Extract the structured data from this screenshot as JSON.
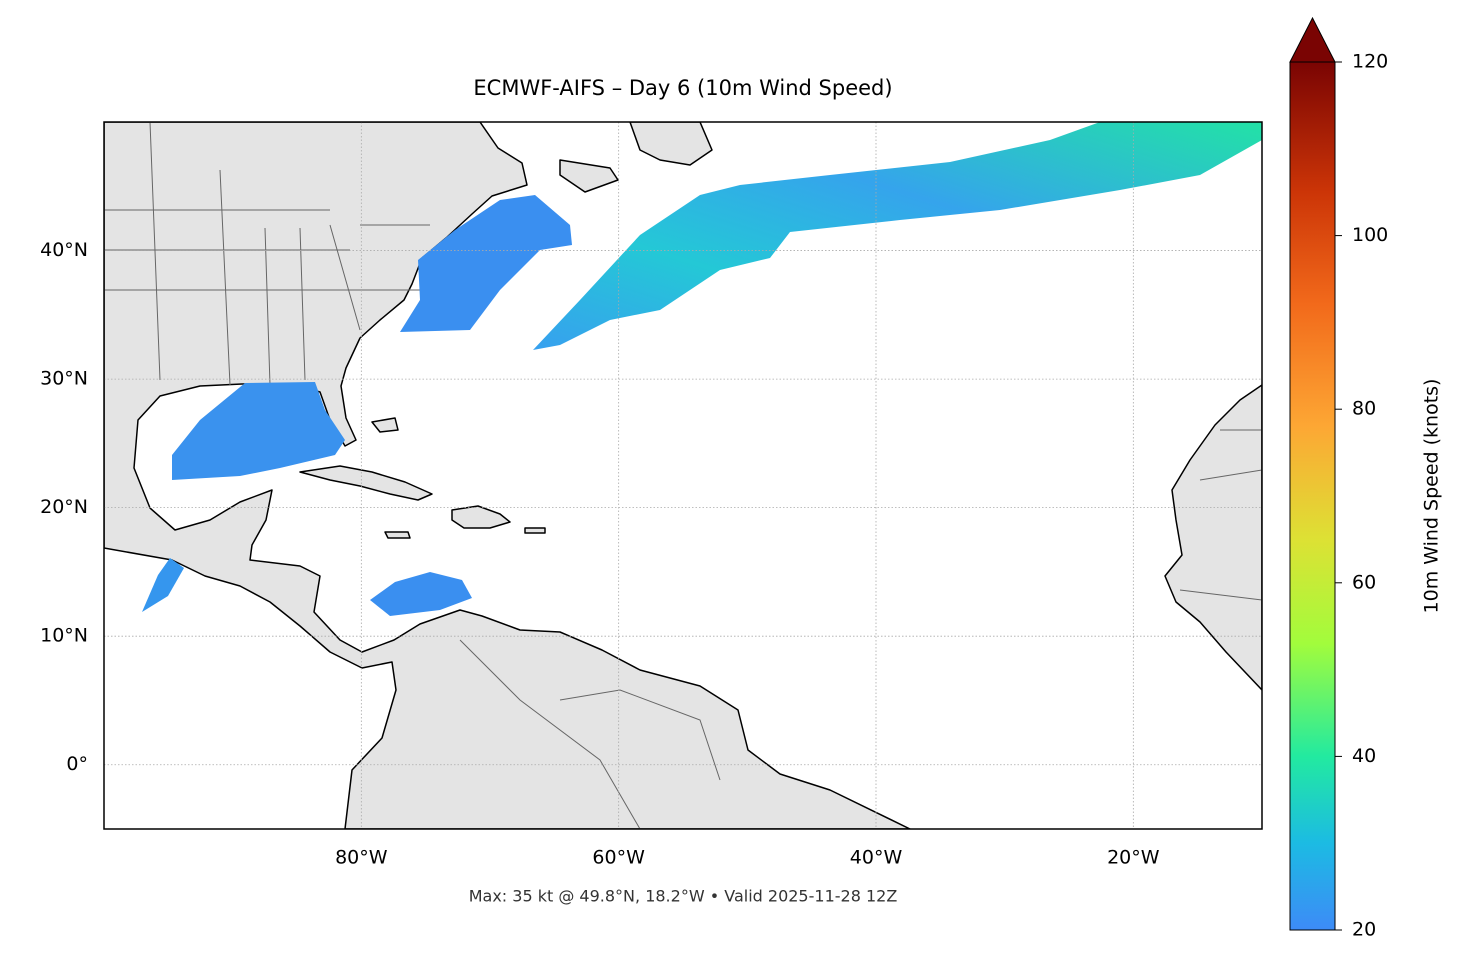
{
  "map": {
    "title": "ECMWF-AIFS – Day 6 (10m Wind Speed)",
    "lon_range": [
      -100,
      -10
    ],
    "lat_range": [
      -5,
      50
    ],
    "lon_ticks": [
      {
        "value": -80,
        "label": "80°W"
      },
      {
        "value": -60,
        "label": "60°W"
      },
      {
        "value": -40,
        "label": "40°W"
      },
      {
        "value": -20,
        "label": "20°W"
      }
    ],
    "lat_ticks": [
      {
        "value": 0,
        "label": "0°"
      },
      {
        "value": 10,
        "label": "10°N"
      },
      {
        "value": 20,
        "label": "20°N"
      },
      {
        "value": 30,
        "label": "30°N"
      },
      {
        "value": 40,
        "label": "40°N"
      }
    ],
    "gridlines": true,
    "colorbar": {
      "label": "10m Wind Speed (knots)",
      "lim": [
        20,
        120
      ],
      "ticks": [
        20,
        40,
        60,
        80,
        100,
        120
      ]
    },
    "footer": "Max: 35 kt @ 49.8°N, 18.2°W • Valid 2025-11-28 12Z"
  }
}
